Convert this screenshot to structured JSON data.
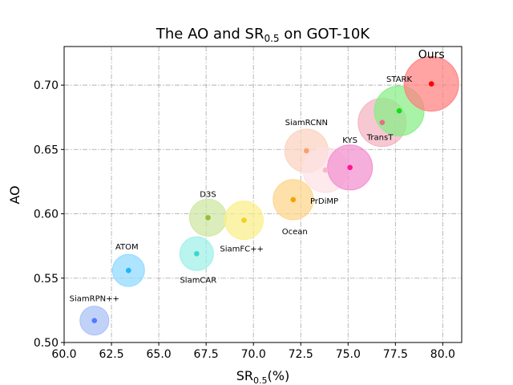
{
  "chart_data": {
    "type": "scatter",
    "title": "The AO and SR",
    "title_subscript": "0.5",
    "title_suffix": " on GOT-10K",
    "xlabel": "SR",
    "xlabel_subscript": "0.5",
    "xlabel_suffix": "(%)",
    "ylabel": "AO",
    "xlim": [
      60.0,
      81.0
    ],
    "ylim": [
      0.5,
      0.73
    ],
    "xticks": [
      "60.0",
      "62.5",
      "65.0",
      "67.5",
      "70.0",
      "72.5",
      "75.0",
      "77.5",
      "80.0"
    ],
    "yticks": [
      "0.50",
      "0.55",
      "0.60",
      "0.65",
      "0.70"
    ],
    "grid": true,
    "points": [
      {
        "name": "SiamRPN++",
        "x": 61.6,
        "y": 0.517,
        "color": "#4f7bff",
        "bubble": "#a9c0f7"
      },
      {
        "name": "ATOM",
        "x": 63.4,
        "y": 0.556,
        "color": "#1eb4ff",
        "bubble": "#8fd9ff"
      },
      {
        "name": "SiamCAR",
        "x": 67.0,
        "y": 0.569,
        "color": "#3ad6cf",
        "bubble": "#9ef0e8"
      },
      {
        "name": "D3S",
        "x": 67.6,
        "y": 0.597,
        "color": "#8fbf3e",
        "bubble": "#cfe6a2"
      },
      {
        "name": "SiamFC++",
        "x": 69.5,
        "y": 0.595,
        "color": "#f2d21f",
        "bubble": "#fbef8a"
      },
      {
        "name": "Ocean",
        "x": 72.1,
        "y": 0.611,
        "color": "#f5a300",
        "bubble": "#fdd48a"
      },
      {
        "name": "SiamRCNN",
        "x": 72.8,
        "y": 0.649,
        "color": "#f5a07a",
        "bubble": "#fbd3bf"
      },
      {
        "name": "PrDiMP",
        "x": 73.8,
        "y": 0.634,
        "color": "#f7b8c6",
        "bubble": "#fde0e6"
      },
      {
        "name": "KYS",
        "x": 75.1,
        "y": 0.636,
        "color": "#ff1493",
        "bubble": "#f38fd0"
      },
      {
        "name": "TransT",
        "x": 76.8,
        "y": 0.671,
        "color": "#e86f88",
        "bubble": "#f3b3c0"
      },
      {
        "name": "STARK",
        "x": 77.7,
        "y": 0.68,
        "color": "#11e011",
        "bubble": "#86ee86"
      },
      {
        "name": "Ours",
        "x": 79.4,
        "y": 0.701,
        "color": "#ff0000",
        "bubble": "#ff8080"
      }
    ]
  }
}
